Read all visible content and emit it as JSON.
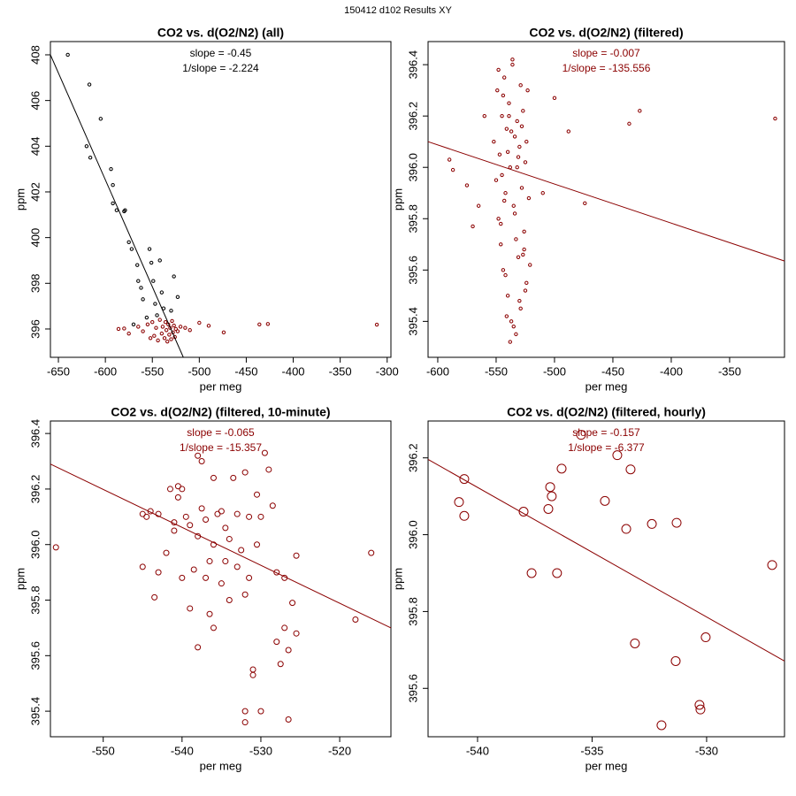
{
  "title": "150412   d102   Results XY",
  "chart_data": [
    {
      "type": "scatter",
      "title": "CO2 vs. d(O2/N2) (all)",
      "annotations": [
        "slope = -0.45",
        "1/slope = -2.224"
      ],
      "annotation_color": "#000000",
      "xlabel": "per meg",
      "ylabel": "ppm",
      "xlim": [
        -658.5,
        -296
      ],
      "ylim": [
        394.76,
        408.58
      ],
      "xticks": [
        -650,
        -600,
        -550,
        -500,
        -450,
        -400,
        -350,
        -300
      ],
      "yticks": [
        396,
        398,
        400,
        402,
        404,
        406,
        408
      ],
      "series": [
        {
          "color": "#000000",
          "x": [
            -640,
            -617,
            -620,
            -616,
            -605,
            -594,
            -592,
            -592,
            -588,
            -580,
            -579,
            -575,
            -572,
            -566,
            -565,
            -562,
            -560,
            -553,
            -551,
            -549,
            -542,
            -540,
            -545,
            -556,
            -527,
            -523,
            -570,
            -530,
            -547,
            -538
          ],
          "y": [
            408.0,
            406.7,
            404.0,
            403.5,
            405.2,
            403.0,
            402.3,
            401.5,
            401.2,
            401.15,
            401.2,
            399.8,
            399.5,
            398.8,
            398.1,
            397.8,
            397.3,
            399.5,
            398.9,
            398.1,
            399.0,
            397.6,
            396.6,
            396.5,
            398.3,
            397.4,
            396.2,
            396.8,
            397.1,
            396.9
          ]
        },
        {
          "color": "#8b0000",
          "x": [
            -580,
            -586,
            -575,
            -565,
            -560,
            -555,
            -552,
            -550,
            -548,
            -546,
            -544,
            -542,
            -540,
            -539,
            -537,
            -536,
            -535,
            -534,
            -533,
            -532,
            -531,
            -530,
            -529,
            -528,
            -527,
            -526,
            -525,
            -523,
            -520,
            -515,
            -510,
            -500,
            -490,
            -474,
            -436,
            -427,
            -311
          ],
          "y": [
            396.02,
            396.0,
            395.8,
            396.1,
            395.9,
            396.2,
            395.6,
            396.3,
            395.7,
            396.05,
            395.5,
            396.4,
            395.8,
            396.1,
            395.6,
            396.3,
            395.95,
            395.45,
            396.2,
            395.75,
            396.05,
            395.55,
            396.35,
            395.85,
            396.15,
            395.65,
            396.0,
            395.9,
            396.1,
            396.05,
            395.95,
            396.27,
            396.14,
            395.85,
            396.2,
            396.22,
            396.19
          ]
        }
      ],
      "fit": {
        "color": "#000000",
        "x": [
          -658.5,
          -517
        ],
        "y": [
          408.0,
          394.76
        ]
      }
    },
    {
      "type": "scatter",
      "title": "CO2 vs. d(O2/N2) (filtered)",
      "annotations": [
        "slope = -0.007",
        "1/slope = -135.556"
      ],
      "annotation_color": "#8b0000",
      "xlabel": "per meg",
      "ylabel": "ppm",
      "xlim": [
        -608.3,
        -303
      ],
      "ylim": [
        395.26,
        396.49
      ],
      "xticks": [
        -600,
        -550,
        -500,
        -450,
        -400,
        -350
      ],
      "yticks": [
        395.4,
        395.6,
        395.8,
        {
          "value": 396,
          "label": "396.0"
        },
        396.2,
        396.4
      ],
      "series": [
        {
          "color": "#8b0000",
          "x": [
            -590,
            -587,
            -570,
            -560,
            -575,
            -565,
            -500,
            -488,
            -474,
            -436,
            -427,
            -311,
            -510,
            -552,
            -550,
            -549,
            -548,
            -547,
            -546,
            -545,
            -544,
            -543,
            -542,
            -541,
            -540,
            -539,
            -538,
            -537,
            -536,
            -535,
            -534,
            -533,
            -532,
            -531,
            -530,
            -529,
            -528,
            -527,
            -526,
            -525,
            -524,
            -523,
            -522,
            -521,
            -548,
            -546,
            -544,
            -542,
            -540,
            -538,
            -536,
            -534,
            -532,
            -530,
            -528,
            -526,
            -524,
            -545,
            -541,
            -537,
            -533,
            -529,
            -525,
            -543,
            -539,
            -535,
            -531,
            -527
          ],
          "y": [
            396.03,
            395.99,
            395.77,
            396.2,
            395.93,
            395.85,
            396.27,
            396.14,
            395.86,
            396.17,
            396.22,
            396.19,
            395.9,
            396.1,
            395.95,
            396.3,
            395.8,
            396.05,
            395.7,
            396.2,
            395.6,
            396.35,
            395.9,
            396.15,
            395.5,
            396.25,
            396.0,
            395.4,
            396.4,
            395.85,
            396.12,
            395.35,
            396.18,
            395.65,
            396.08,
            395.45,
            395.92,
            396.22,
            395.75,
            396.02,
            395.55,
            396.3,
            395.88,
            395.62,
            396.38,
            395.78,
            396.28,
            395.58,
            396.06,
            395.32,
            396.42,
            395.82,
            396.0,
            395.48,
            396.16,
            395.68,
            396.1,
            395.97,
            395.42,
            396.14,
            395.72,
            396.32,
            395.52,
            395.87,
            396.2,
            395.38,
            396.04,
            395.66
          ]
        }
      ],
      "fit": {
        "color": "#8b0000",
        "x": [
          -608.3,
          -303
        ],
        "y": [
          396.1,
          395.635
        ]
      }
    },
    {
      "type": "scatter",
      "title": "CO2 vs. d(O2/N2) (filtered, 10-minute)",
      "annotations": [
        "slope = -0.065",
        "1/slope = -15.357"
      ],
      "annotation_color": "#8b0000",
      "xlabel": "per meg",
      "ylabel": "ppm",
      "xlim": [
        -556.7,
        -513.5
      ],
      "ylim": [
        395.308,
        396.445
      ],
      "xticks": [
        -550,
        -540,
        -530,
        -520
      ],
      "yticks": [
        395.4,
        395.6,
        395.8,
        {
          "value": 396,
          "label": "396.0"
        },
        396.2,
        396.4
      ],
      "series": [
        {
          "color": "#8b0000",
          "x": [
            -545,
            -544.5,
            -544,
            -543,
            -545,
            -543.5,
            -543,
            -542,
            -541.5,
            -541,
            -541,
            -540.5,
            -540.5,
            -540,
            -540,
            -539.5,
            -539,
            -539,
            -538.5,
            -538,
            -538,
            -538,
            -537.5,
            -537.5,
            -537,
            -537,
            -536.5,
            -536.5,
            -536,
            -536,
            -536,
            -535.5,
            -535,
            -535,
            -534.5,
            -534.5,
            -534,
            -534,
            -533.5,
            -533,
            -533,
            -532.5,
            -532,
            -532,
            -532,
            -532,
            -531.5,
            -531.5,
            -531,
            -531,
            -530.5,
            -530.5,
            -530,
            -530,
            -529.5,
            -529,
            -528.5,
            -528,
            -528,
            -527.5,
            -527,
            -527,
            -526.5,
            -526.5,
            -526,
            -525.5,
            -525.5,
            -556,
            -518,
            -516
          ],
          "y": [
            396.11,
            396.1,
            396.12,
            396.11,
            395.92,
            395.81,
            395.9,
            395.97,
            396.2,
            396.05,
            396.08,
            396.21,
            396.17,
            396.2,
            395.88,
            396.1,
            396.07,
            395.77,
            395.91,
            396.32,
            396.03,
            395.63,
            396.3,
            396.13,
            396.09,
            395.88,
            395.94,
            395.75,
            396.24,
            396.0,
            395.7,
            396.11,
            396.12,
            395.86,
            396.06,
            395.94,
            396.02,
            395.8,
            396.24,
            396.11,
            395.92,
            395.98,
            396.26,
            395.82,
            395.4,
            395.36,
            396.1,
            395.88,
            395.53,
            395.55,
            396.18,
            396.0,
            395.4,
            396.1,
            396.33,
            396.27,
            396.14,
            395.9,
            395.65,
            395.57,
            395.88,
            395.7,
            395.62,
            395.37,
            395.79,
            395.96,
            395.68,
            395.99,
            395.73,
            395.97
          ]
        }
      ],
      "fit": {
        "color": "#8b0000",
        "x": [
          -556.7,
          -513.5
        ],
        "y": [
          396.29,
          395.7
        ]
      }
    },
    {
      "type": "scatter",
      "title": "CO2 vs. d(O2/N2) (filtered, hourly)",
      "annotations": [
        "slope = -0.157",
        "1/slope = -6.377"
      ],
      "annotation_color": "#8b0000",
      "xlabel": "per meg",
      "ylabel": "ppm",
      "xlim": [
        -542.16,
        -526.6
      ],
      "ylim": [
        395.474,
        396.296
      ],
      "xticks": [
        -540,
        -535,
        -530
      ],
      "yticks": [
        395.6,
        395.8,
        {
          "value": 396,
          "label": "396.0"
        },
        396.2
      ],
      "series": [
        {
          "color": "#8b0000",
          "x": [
            -540.58,
            -540.81,
            -540.58,
            -537.99,
            -537.64,
            -536.83,
            -536.76,
            -536.91,
            -536.53,
            -536.33,
            -535.48,
            -534.44,
            -533.9,
            -533.51,
            -533.32,
            -533.13,
            -532.39,
            -531.97,
            -531.35,
            -531.31,
            -530.31,
            -530.27,
            -530.04,
            -527.14
          ],
          "y": [
            396.145,
            396.085,
            396.049,
            396.06,
            395.9,
            396.124,
            396.1,
            396.067,
            395.9,
            396.172,
            396.26,
            396.088,
            396.207,
            396.015,
            396.17,
            395.717,
            396.028,
            395.504,
            395.671,
            396.031,
            395.557,
            395.545,
            395.733,
            395.921
          ]
        }
      ],
      "fit": {
        "color": "#8b0000",
        "x": [
          -542.16,
          -526.6
        ],
        "y": [
          396.196,
          395.671
        ]
      }
    }
  ]
}
